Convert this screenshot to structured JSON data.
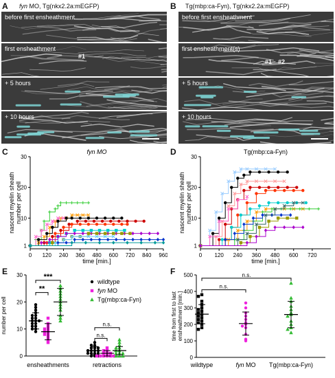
{
  "panel_a": {
    "letter": "A",
    "title_italic": "fyn",
    "title_rest": " MO, Tg(nkx2.2a:mEGFP)",
    "rows": [
      "before first ensheathment",
      "first ensheathment",
      "+ 5 hours",
      "+ 10 hours"
    ],
    "markers": [
      "#1"
    ]
  },
  "panel_b": {
    "letter": "B",
    "title": "Tg(mbp:ca-Fyn), Tg(nkx2.2a:mEGFP)",
    "rows": [
      "before first ensheathment",
      "first ensheathment(s)",
      "+ 5 hours",
      "+ 10 hours"
    ],
    "markers": [
      "#1",
      "#2"
    ]
  },
  "panel_c": {
    "letter": "C"
  },
  "panel_d": {
    "letter": "D"
  },
  "panel_e": {
    "letter": "E"
  },
  "panel_f": {
    "letter": "F"
  },
  "chart_data": [
    {
      "id": "C",
      "type": "line",
      "title": "fyn MO",
      "title_italic": true,
      "xlabel": "time [min.]",
      "ylabel": "nascent myelin sheath number per cell",
      "xlim": [
        0,
        960
      ],
      "ylim": [
        0,
        30
      ],
      "xticks": [
        0,
        120,
        240,
        360,
        480,
        600,
        720,
        840,
        960
      ],
      "yticks": [
        1,
        10,
        20,
        30
      ],
      "series": [
        {
          "color": "#33cc33",
          "marker": "+",
          "x": [
            0,
            40,
            80,
            100,
            140,
            180,
            200,
            220,
            260,
            300,
            340,
            380,
            420
          ],
          "y": [
            1,
            3,
            6,
            9,
            12,
            13,
            14,
            15,
            15,
            15,
            15,
            15,
            15
          ]
        },
        {
          "color": "#ff9900",
          "marker": "x",
          "x": [
            0,
            60,
            100,
            140,
            180,
            220,
            260,
            300,
            340,
            380,
            420
          ],
          "y": [
            1,
            2,
            4,
            7,
            9,
            10,
            10,
            11,
            11,
            11,
            11
          ]
        },
        {
          "color": "#ff66cc",
          "marker": "x",
          "x": [
            0,
            40,
            80,
            120,
            160,
            200,
            240
          ],
          "y": [
            1,
            4,
            6,
            8,
            9,
            10,
            10
          ]
        },
        {
          "color": "#000000",
          "marker": "o",
          "x": [
            0,
            60,
            120,
            160,
            200,
            260,
            300,
            360,
            420,
            480,
            540,
            600,
            660
          ],
          "y": [
            1,
            3,
            5,
            7,
            9,
            10,
            10,
            10,
            10,
            10,
            10,
            10,
            10
          ]
        },
        {
          "color": "#cc0000",
          "marker": "o",
          "x": [
            0,
            100,
            160,
            220,
            280,
            340,
            400,
            460,
            520,
            580,
            640,
            700,
            760,
            820
          ],
          "y": [
            1,
            2,
            4,
            6,
            8,
            9,
            9,
            9,
            9,
            9,
            9,
            9,
            9,
            9
          ]
        },
        {
          "color": "#ff3300",
          "marker": "o",
          "x": [
            0,
            120,
            180,
            240,
            300,
            360,
            420,
            480,
            540,
            600,
            660,
            700
          ],
          "y": [
            1,
            2,
            5,
            7,
            8,
            8,
            8,
            8,
            8,
            8,
            8,
            8
          ]
        },
        {
          "color": "#00cccc",
          "marker": "s",
          "x": [
            0,
            140,
            200,
            260,
            320,
            380,
            440,
            500,
            560,
            620,
            680
          ],
          "y": [
            1,
            2,
            4,
            5,
            6,
            6,
            6,
            6,
            6,
            6,
            6
          ]
        },
        {
          "color": "#aa00cc",
          "marker": "d",
          "x": [
            0,
            80,
            140,
            200,
            260,
            320,
            380,
            440,
            500,
            560,
            620,
            680,
            740,
            800,
            860,
            920
          ],
          "y": [
            1,
            2,
            3,
            4,
            5,
            5,
            5,
            5,
            5,
            5,
            5,
            5,
            5,
            5,
            5,
            5
          ]
        },
        {
          "color": "#999900",
          "marker": "s",
          "x": [
            0,
            160,
            240,
            300,
            360,
            420,
            480,
            540,
            600,
            660,
            720
          ],
          "y": [
            1,
            2,
            3,
            4,
            4,
            5,
            5,
            5,
            5,
            5,
            5
          ]
        },
        {
          "color": "#66ccff",
          "marker": "x",
          "x": [
            0,
            180,
            240,
            300,
            360,
            420,
            480,
            540,
            600
          ],
          "y": [
            1,
            2,
            3,
            4,
            4,
            4,
            4,
            4,
            4
          ]
        },
        {
          "color": "#0033cc",
          "marker": "d",
          "x": [
            0,
            200,
            260,
            320,
            380,
            440,
            500,
            560,
            620,
            680,
            740,
            800,
            860,
            920,
            960
          ],
          "y": [
            1,
            2,
            2,
            3,
            3,
            3,
            3,
            3,
            3,
            3,
            3,
            3,
            3,
            3,
            3
          ]
        },
        {
          "color": "#009999",
          "marker": "d",
          "x": [
            0,
            300,
            400,
            500,
            600,
            700,
            800,
            900,
            960
          ],
          "y": [
            1,
            2,
            2,
            2,
            2,
            2,
            2,
            2,
            2
          ]
        }
      ]
    },
    {
      "id": "D",
      "type": "line",
      "title": "Tg(mbp:ca-Fyn)",
      "xlabel": "time [min.]",
      "ylabel": "nascent myelin sheath number per cell",
      "xlim": [
        0,
        840
      ],
      "ylim": [
        0,
        30
      ],
      "xticks": [
        0,
        120,
        240,
        360,
        480,
        600,
        720
      ],
      "yticks": [
        1,
        10,
        20,
        30
      ],
      "series": [
        {
          "color": "#99ccff",
          "marker": "x",
          "x": [
            0,
            60,
            100,
            140,
            180,
            220,
            260,
            300,
            360,
            420,
            480
          ],
          "y": [
            1,
            6,
            12,
            18,
            22,
            25,
            26,
            26,
            26,
            26,
            26
          ]
        },
        {
          "color": "#000000",
          "marker": "o",
          "x": [
            0,
            80,
            120,
            160,
            200,
            240,
            280,
            320,
            380,
            440,
            500,
            560
          ],
          "y": [
            1,
            5,
            10,
            15,
            20,
            23,
            24,
            25,
            25,
            25,
            25,
            25
          ]
        },
        {
          "color": "#ff9999",
          "marker": "x",
          "x": [
            0,
            100,
            140,
            180,
            220,
            260,
            300,
            360,
            420,
            480,
            540
          ],
          "y": [
            1,
            4,
            9,
            14,
            18,
            21,
            22,
            22,
            22,
            22,
            22
          ]
        },
        {
          "color": "#cc0000",
          "marker": "o",
          "x": [
            0,
            120,
            160,
            200,
            240,
            280,
            320,
            380,
            440,
            500,
            560,
            620
          ],
          "y": [
            1,
            3,
            8,
            13,
            16,
            19,
            20,
            20,
            20,
            20,
            20,
            20
          ]
        },
        {
          "color": "#ff3300",
          "marker": "o",
          "x": [
            0,
            160,
            200,
            240,
            300,
            360,
            420,
            480,
            540,
            600,
            660
          ],
          "y": [
            1,
            3,
            7,
            11,
            15,
            18,
            19,
            19,
            19,
            19,
            19
          ]
        },
        {
          "color": "#ff66cc",
          "marker": "x",
          "x": [
            0,
            60,
            120,
            180,
            240,
            300
          ],
          "y": [
            1,
            4,
            9,
            13,
            16,
            17
          ]
        },
        {
          "color": "#00cccc",
          "marker": "o",
          "x": [
            0,
            140,
            200,
            260,
            320,
            380,
            440,
            500,
            560,
            620,
            680
          ],
          "y": [
            1,
            3,
            7,
            11,
            13,
            14,
            15,
            15,
            15,
            15,
            15
          ]
        },
        {
          "color": "#ff9900",
          "marker": "x",
          "x": [
            0,
            180,
            240,
            300,
            360,
            420,
            480,
            540,
            600,
            660
          ],
          "y": [
            1,
            3,
            6,
            9,
            12,
            13,
            13,
            13,
            13,
            13
          ]
        },
        {
          "color": "#33cc33",
          "marker": "+",
          "x": [
            0,
            220,
            280,
            340,
            400,
            460,
            520,
            580,
            640,
            700,
            760
          ],
          "y": [
            1,
            3,
            6,
            9,
            12,
            13,
            13,
            13,
            13,
            13,
            13
          ]
        },
        {
          "color": "#0033cc",
          "marker": "d",
          "x": [
            0,
            160,
            220,
            280,
            340,
            400,
            460,
            520,
            580
          ],
          "y": [
            1,
            3,
            5,
            8,
            10,
            11,
            11,
            11,
            11
          ]
        },
        {
          "color": "#336666",
          "marker": "x",
          "x": [
            0,
            240,
            300,
            360,
            420,
            480,
            540,
            600,
            660
          ],
          "y": [
            1,
            3,
            5,
            8,
            11,
            13,
            14,
            15,
            15
          ]
        },
        {
          "color": "#999900",
          "marker": "s",
          "x": [
            0,
            260,
            320,
            380,
            440,
            500,
            560,
            620
          ],
          "y": [
            1,
            2,
            4,
            7,
            9,
            10,
            10,
            10
          ]
        },
        {
          "color": "#aa00cc",
          "marker": "d",
          "x": [
            0,
            300,
            360,
            420,
            480,
            540,
            600,
            660
          ],
          "y": [
            1,
            2,
            4,
            6,
            7,
            7,
            7,
            7
          ]
        }
      ]
    },
    {
      "id": "E",
      "type": "scatter",
      "ylabel": "number per cell",
      "ylim": [
        0,
        30
      ],
      "yticks": [
        0,
        10,
        20,
        30
      ],
      "categories": [
        "ensheathments",
        "retractions"
      ],
      "legend": [
        "wildtype",
        "fyn MO",
        "Tg(mbp:ca-Fyn)"
      ],
      "legend_colors": [
        "#000000",
        "#ee22dd",
        "#33bb33"
      ],
      "significance": [
        {
          "pair": [
            "wildtype",
            "fyn MO"
          ],
          "group": "ensheathments",
          "label": "**"
        },
        {
          "pair": [
            "wildtype",
            "Tg(mbp:ca-Fyn)"
          ],
          "group": "ensheathments",
          "label": "***"
        },
        {
          "pair": [
            "wildtype",
            "fyn MO"
          ],
          "group": "retractions",
          "label": "n.s."
        },
        {
          "pair": [
            "wildtype",
            "Tg(mbp:ca-Fyn)"
          ],
          "group": "retractions",
          "label": "n.s."
        }
      ],
      "series": [
        {
          "name": "wildtype",
          "group": "ensheathments",
          "mean": 13,
          "sd": 3,
          "values": [
            19,
            18,
            17,
            16,
            15,
            15,
            14,
            14,
            13,
            13,
            13,
            12,
            12,
            11,
            11,
            10,
            10,
            9
          ]
        },
        {
          "name": "fyn MO",
          "group": "ensheathments",
          "mean": 9,
          "sd": 3,
          "values": [
            14,
            12,
            11,
            10,
            10,
            9,
            9,
            8,
            8,
            7,
            6,
            5
          ]
        },
        {
          "name": "Tg(mbp:ca-Fyn)",
          "group": "ensheathments",
          "mean": 20,
          "sd": 5,
          "values": [
            26,
            25,
            24,
            23,
            22,
            21,
            20,
            19,
            18,
            17,
            15,
            14,
            13
          ]
        },
        {
          "name": "wildtype",
          "group": "retractions",
          "mean": 2,
          "sd": 1.5,
          "values": [
            5,
            4,
            4,
            3,
            3,
            3,
            2,
            2,
            2,
            2,
            1,
            1,
            1,
            1,
            0,
            0,
            0
          ]
        },
        {
          "name": "fyn MO",
          "group": "retractions",
          "mean": 1,
          "sd": 1,
          "values": [
            3,
            2,
            2,
            1,
            1,
            1,
            0,
            0,
            0,
            0,
            0,
            0
          ]
        },
        {
          "name": "Tg(mbp:ca-Fyn)",
          "group": "retractions",
          "mean": 2,
          "sd": 1.5,
          "values": [
            6,
            5,
            4,
            3,
            3,
            2,
            2,
            1,
            1,
            1,
            0,
            0,
            0
          ]
        }
      ]
    },
    {
      "id": "F",
      "type": "scatter",
      "ylabel": "time from first to last ensheathment [min.]",
      "ylim": [
        0,
        500
      ],
      "yticks": [
        0,
        100,
        200,
        300,
        400,
        500
      ],
      "categories": [
        "wildtype",
        "fyn MO",
        "Tg(mbp:ca-Fyn)"
      ],
      "category_italic_prefix": [
        "",
        "fyn",
        ""
      ],
      "colors": [
        "#000000",
        "#ee22dd",
        "#33bb33"
      ],
      "significance": [
        {
          "pair": [
            "wildtype",
            "fyn MO"
          ],
          "label": "n.s."
        },
        {
          "pair": [
            "wildtype",
            "Tg(mbp:ca-Fyn)"
          ],
          "label": "n.s."
        }
      ],
      "series": [
        {
          "name": "wildtype",
          "mean": 262,
          "sd": 58,
          "values": [
            380,
            370,
            340,
            320,
            300,
            290,
            280,
            270,
            260,
            250,
            240,
            230,
            220,
            210,
            200,
            180,
            170
          ]
        },
        {
          "name": "fyn MO",
          "mean": 205,
          "sd": 70,
          "values": [
            330,
            300,
            270,
            250,
            230,
            210,
            200,
            190,
            180,
            140,
            110,
            100
          ]
        },
        {
          "name": "Tg(mbp:ca-Fyn)",
          "mean": 260,
          "sd": 80,
          "values": [
            450,
            360,
            340,
            310,
            290,
            270,
            260,
            250,
            220,
            200,
            180,
            170,
            150
          ]
        }
      ]
    }
  ]
}
